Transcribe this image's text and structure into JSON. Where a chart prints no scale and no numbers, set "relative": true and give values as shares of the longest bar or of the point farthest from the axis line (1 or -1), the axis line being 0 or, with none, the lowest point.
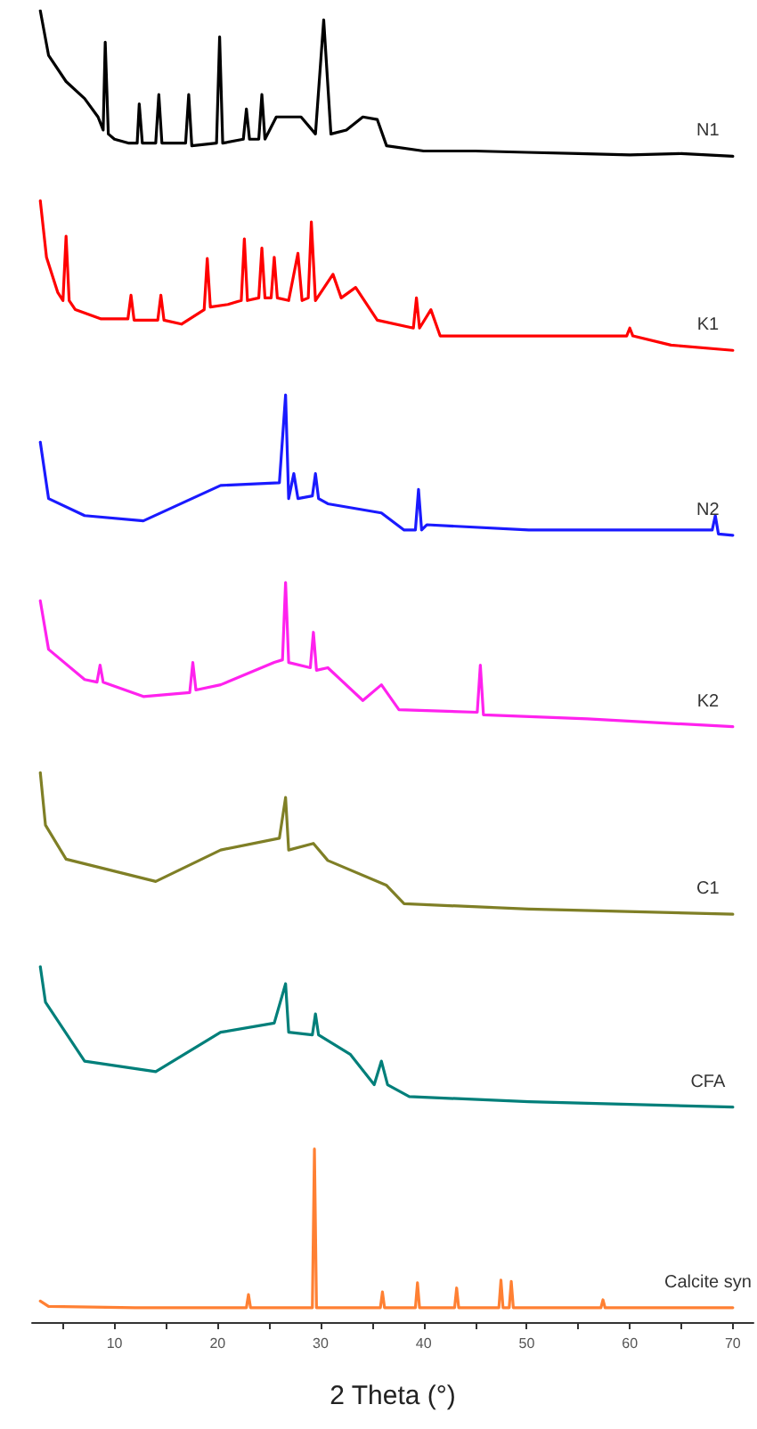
{
  "chart_data": {
    "type": "line",
    "relative": true,
    "xlabel": "2 Theta (°)",
    "xlim": [
      2,
      72
    ],
    "xticks": [
      {
        "value": 5,
        "label": null
      },
      10,
      {
        "value": 15,
        "label": null
      },
      20,
      {
        "value": 25,
        "label": null
      },
      30,
      {
        "value": 35,
        "label": null
      },
      40,
      {
        "value": 45,
        "label": null
      },
      50,
      {
        "value": 55,
        "label": null
      },
      60,
      {
        "value": 65,
        "label": null
      },
      70
    ],
    "tick_labels": "x",
    "grid": false,
    "legend": false,
    "marker": "none",
    "line_style": "solid",
    "series": [
      {
        "name": "N1",
        "color": "#000000",
        "x": [
          2.8,
          3.6,
          5.3,
          7.1,
          8.4,
          8.9,
          9.1,
          9.4,
          10,
          11.4,
          12.2,
          12.4,
          12.7,
          14.0,
          14.3,
          14.6,
          16.9,
          17.2,
          17.5,
          19.9,
          20.2,
          20.5,
          22.5,
          22.8,
          23.1,
          24.0,
          24.3,
          24.6,
          25.7,
          26.9,
          28.1,
          29.5,
          30.3,
          31.0,
          32.5,
          34.1,
          35.5,
          36.4,
          40,
          45,
          50,
          55,
          60,
          65,
          70
        ],
        "values": [
          1.0,
          0.966,
          0.946,
          0.933,
          0.919,
          0.909,
          0.976,
          0.906,
          0.902,
          0.899,
          0.899,
          0.929,
          0.899,
          0.899,
          0.936,
          0.899,
          0.899,
          0.936,
          0.897,
          0.899,
          0.98,
          0.899,
          0.902,
          0.925,
          0.902,
          0.902,
          0.936,
          0.902,
          0.919,
          0.919,
          0.919,
          0.906,
          0.993,
          0.906,
          0.909,
          0.919,
          0.917,
          0.897,
          0.893,
          0.893,
          0.892,
          0.891,
          0.89,
          0.891,
          0.889
        ]
      },
      {
        "name": "K1",
        "color": "#ff0000",
        "x": [
          2.8,
          3.4,
          4.5,
          5.0,
          5.3,
          5.6,
          6.2,
          8.7,
          11.3,
          11.6,
          11.9,
          14.2,
          14.5,
          14.8,
          16.5,
          18.7,
          19.0,
          19.3,
          21.0,
          22.3,
          22.6,
          22.9,
          24.0,
          24.3,
          24.6,
          25.2,
          25.5,
          25.8,
          26.9,
          27.8,
          28.2,
          28.8,
          29.1,
          29.5,
          31.2,
          32.0,
          33.4,
          35.5,
          39.0,
          39.3,
          39.6,
          40.7,
          41.6,
          50,
          59.7,
          60.0,
          60.3,
          64,
          70
        ],
        "values": [
          0.855,
          0.812,
          0.785,
          0.779,
          0.828,
          0.779,
          0.772,
          0.765,
          0.765,
          0.783,
          0.764,
          0.764,
          0.783,
          0.764,
          0.761,
          0.772,
          0.811,
          0.774,
          0.776,
          0.779,
          0.826,
          0.779,
          0.781,
          0.819,
          0.781,
          0.781,
          0.812,
          0.781,
          0.779,
          0.815,
          0.779,
          0.781,
          0.839,
          0.779,
          0.799,
          0.781,
          0.789,
          0.764,
          0.758,
          0.781,
          0.758,
          0.772,
          0.752,
          0.752,
          0.752,
          0.758,
          0.752,
          0.745,
          0.741
        ]
      },
      {
        "name": "N2",
        "color": "#1a1aff",
        "x": [
          2.8,
          3.6,
          7.1,
          12.8,
          20.3,
          26.0,
          26.6,
          26.9,
          27.4,
          27.8,
          29.2,
          29.5,
          29.8,
          30.7,
          35.9,
          38.1,
          39.2,
          39.5,
          39.8,
          40.3,
          50.2,
          60,
          68.0,
          68.3,
          68.6,
          70
        ],
        "values": [
          0.671,
          0.628,
          0.615,
          0.611,
          0.638,
          0.64,
          0.707,
          0.628,
          0.647,
          0.628,
          0.63,
          0.647,
          0.628,
          0.624,
          0.617,
          0.604,
          0.604,
          0.635,
          0.604,
          0.608,
          0.604,
          0.604,
          0.604,
          0.615,
          0.601,
          0.6
        ]
      },
      {
        "name": "K2",
        "color": "#ff22ee",
        "x": [
          2.8,
          3.6,
          7.1,
          8.3,
          8.6,
          8.9,
          12.8,
          17.3,
          17.6,
          17.9,
          20.3,
          25.5,
          26.3,
          26.6,
          26.9,
          29.0,
          29.3,
          29.6,
          30.7,
          34.1,
          35.9,
          37.6,
          45.2,
          45.5,
          45.8,
          55.9,
          70
        ],
        "values": [
          0.55,
          0.513,
          0.49,
          0.488,
          0.501,
          0.488,
          0.477,
          0.48,
          0.503,
          0.482,
          0.486,
          0.503,
          0.505,
          0.564,
          0.503,
          0.499,
          0.526,
          0.497,
          0.499,
          0.474,
          0.486,
          0.467,
          0.465,
          0.501,
          0.463,
          0.46,
          0.454
        ]
      },
      {
        "name": "C1",
        "color": "#7f7f26",
        "x": [
          2.8,
          3.3,
          5.3,
          14.0,
          20.3,
          26.0,
          26.6,
          26.9,
          29.3,
          30.7,
          36.4,
          38.1,
          50.2,
          70
        ],
        "values": [
          0.419,
          0.379,
          0.353,
          0.336,
          0.36,
          0.369,
          0.4,
          0.36,
          0.365,
          0.352,
          0.333,
          0.319,
          0.315,
          0.311
        ]
      },
      {
        "name": "CFA",
        "color": "#007f7a",
        "x": [
          2.8,
          3.3,
          7.1,
          14.0,
          20.3,
          25.5,
          26.6,
          26.9,
          29.2,
          29.5,
          29.8,
          32.9,
          35.2,
          35.9,
          36.5,
          38.6,
          50.2,
          70
        ],
        "values": [
          0.271,
          0.244,
          0.199,
          0.191,
          0.221,
          0.228,
          0.258,
          0.221,
          0.219,
          0.235,
          0.219,
          0.204,
          0.181,
          0.199,
          0.181,
          0.172,
          0.168,
          0.164
        ]
      },
      {
        "name": "Calcite syn",
        "color": "#ff8033",
        "x": [
          2.8,
          3.6,
          12,
          22.8,
          23.0,
          23.2,
          29.2,
          29.4,
          29.6,
          35.8,
          36.0,
          36.2,
          39.2,
          39.4,
          39.6,
          43.0,
          43.2,
          43.4,
          47.3,
          47.5,
          47.7,
          48.3,
          48.5,
          48.7,
          57.2,
          57.4,
          57.6,
          70
        ],
        "values": [
          0.016,
          0.012,
          0.011,
          0.011,
          0.021,
          0.011,
          0.011,
          0.132,
          0.011,
          0.011,
          0.023,
          0.011,
          0.011,
          0.03,
          0.011,
          0.011,
          0.026,
          0.011,
          0.011,
          0.032,
          0.011,
          0.011,
          0.031,
          0.011,
          0.011,
          0.017,
          0.011,
          0.011
        ]
      }
    ]
  }
}
